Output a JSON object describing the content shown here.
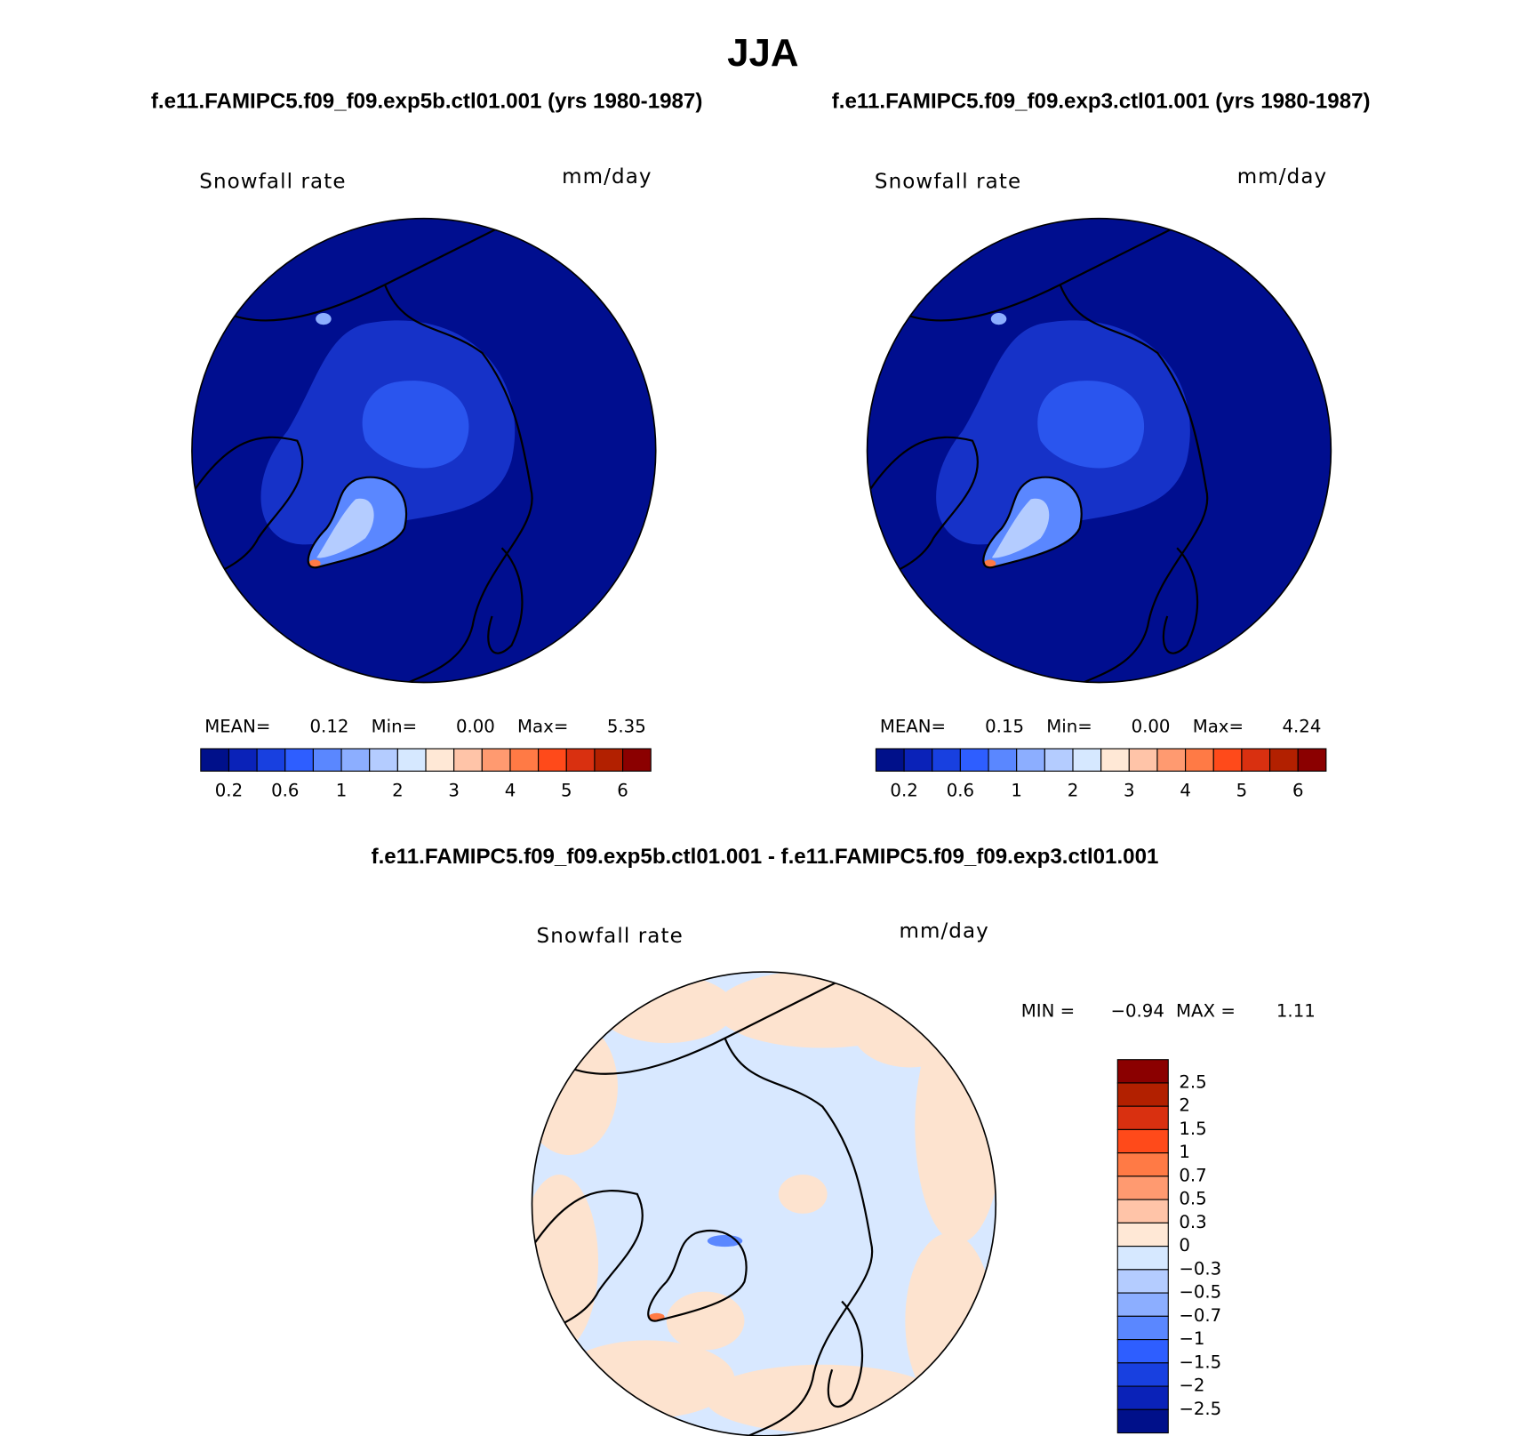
{
  "title": "JJA",
  "panels": [
    {
      "subtitle": "f.e11.FAMIPC5.f09_f09.exp5b.ctl01.001 (yrs 1980-1987)",
      "variable": "Snowfall rate",
      "units": "mm/day",
      "stats": [
        {
          "label": "MEAN=",
          "value": "0.12"
        },
        {
          "label": "Min=",
          "value": "0.00"
        },
        {
          "label": "Max=",
          "value": "5.35"
        }
      ]
    },
    {
      "subtitle": "f.e11.FAMIPC5.f09_f09.exp3.ctl01.001 (yrs 1980-1987)",
      "variable": "Snowfall rate",
      "units": "mm/day",
      "stats": [
        {
          "label": "MEAN=",
          "value": "0.15"
        },
        {
          "label": "Min=",
          "value": "0.00"
        },
        {
          "label": "Max=",
          "value": "4.24"
        }
      ]
    }
  ],
  "colorbar": {
    "labels": [
      "0.2",
      "0.6",
      "1",
      "2",
      "3",
      "4",
      "5",
      "6"
    ],
    "colors": [
      "#00108a",
      "#0a22b8",
      "#1840e0",
      "#2e5eff",
      "#5a87ff",
      "#8caeff",
      "#b4ccff",
      "#d6e8ff",
      "#ffe8d6",
      "#ffc4a8",
      "#ff9a70",
      "#ff7a45",
      "#ff4a1a",
      "#d93010",
      "#b22000",
      "#8b0000"
    ]
  },
  "difference": {
    "subtitle": "f.e11.FAMIPC5.f09_f09.exp5b.ctl01.001 - f.e11.FAMIPC5.f09_f09.exp3.ctl01.001",
    "variable": "Snowfall rate",
    "units": "mm/day",
    "stats": [
      {
        "label": "MIN =",
        "value": "−0.94"
      },
      {
        "label": "MAX =",
        "value": "1.11"
      }
    ],
    "colorbar": {
      "labels": [
        "2.5",
        "2",
        "1.5",
        "1",
        "0.7",
        "0.5",
        "0.3",
        "0",
        "−0.3",
        "−0.5",
        "−0.7",
        "−1",
        "−1.5",
        "−2",
        "−2.5"
      ],
      "colors": [
        "#8b0000",
        "#b22000",
        "#d93010",
        "#ff4a1a",
        "#ff7a45",
        "#ff9a70",
        "#ffc4a8",
        "#ffe8d6",
        "#d6e8ff",
        "#b4ccff",
        "#8caeff",
        "#5a87ff",
        "#2e5eff",
        "#1840e0",
        "#0a22b8",
        "#00108a"
      ]
    }
  }
}
